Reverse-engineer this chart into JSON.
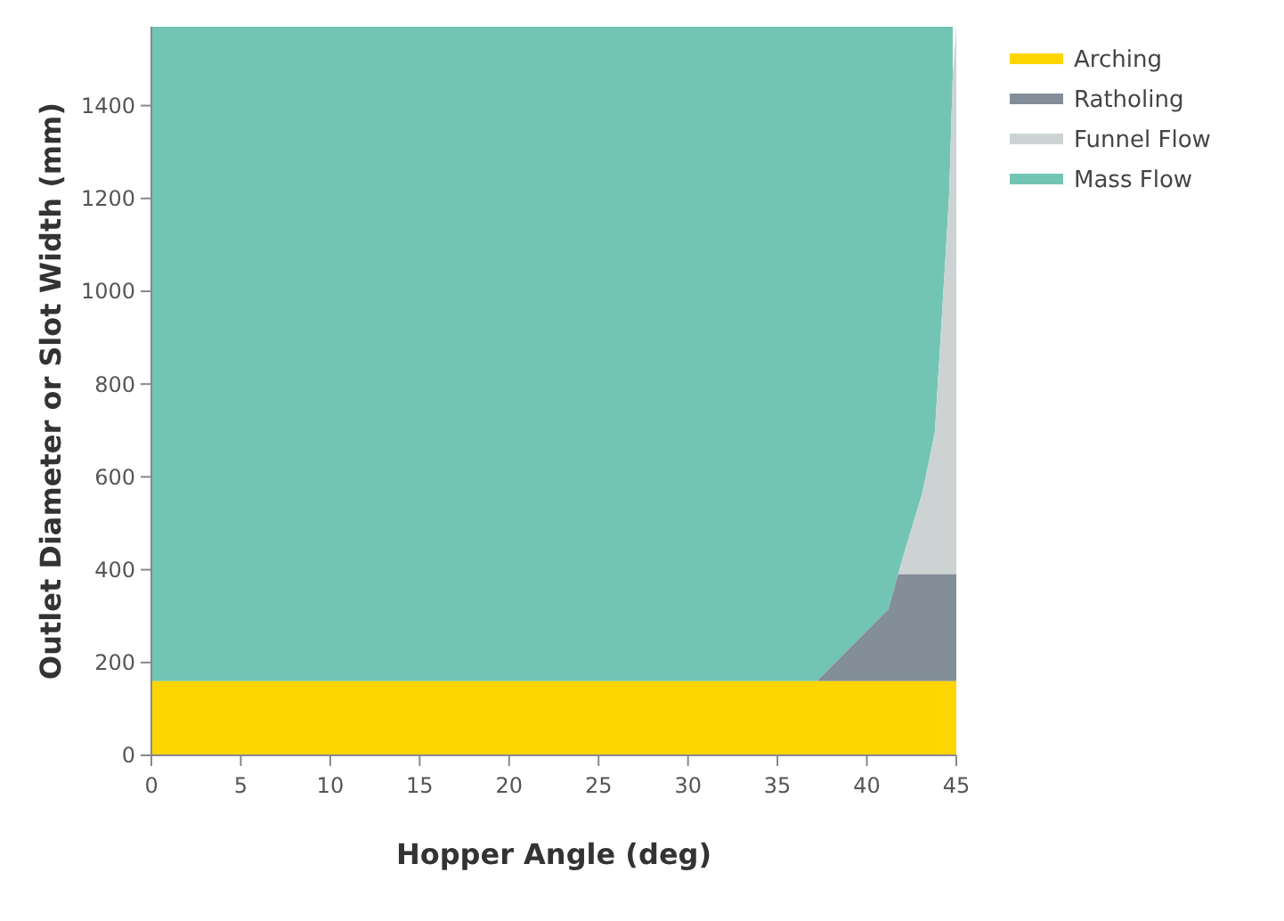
{
  "chart_data": {
    "type": "area",
    "stacked": true,
    "xlabel": "Hopper Angle (deg)",
    "ylabel": "Outlet Diameter or Slot Width (mm)",
    "x": [
      0,
      37.2,
      41.2,
      41.75,
      42.1,
      43.1,
      43.8,
      44.2,
      44.6,
      44.8,
      45
    ],
    "series": [
      {
        "name": "Arching",
        "color": "#fdd500",
        "values": [
          160,
          160,
          160,
          160,
          160,
          160,
          160,
          160,
          160,
          160,
          160
        ]
      },
      {
        "name": "Ratholing",
        "color": "#848e99",
        "values": [
          0,
          0,
          155,
          230,
          230,
          230,
          230,
          230,
          230,
          230,
          230
        ]
      },
      {
        "name": "Funnel Flow",
        "color": "#cdd3d3",
        "values": [
          0,
          0,
          0,
          0,
          48,
          175,
          306,
          560,
          818,
          1075,
          1180
        ]
      },
      {
        "name": "Mass Flow",
        "color": "#72c5b5",
        "values": [
          1410,
          1410,
          1255,
          1180,
          1132,
          1005,
          874,
          620,
          362,
          105,
          null
        ]
      }
    ],
    "xlim": [
      0,
      45
    ],
    "xticks": [
      0,
      5,
      10,
      15,
      20,
      25,
      30,
      35,
      40,
      45
    ],
    "ylim": [
      0,
      1570
    ],
    "yticks": [
      0,
      200,
      400,
      600,
      800,
      1000,
      1200,
      1400
    ],
    "grid": false,
    "legend": "top right"
  }
}
